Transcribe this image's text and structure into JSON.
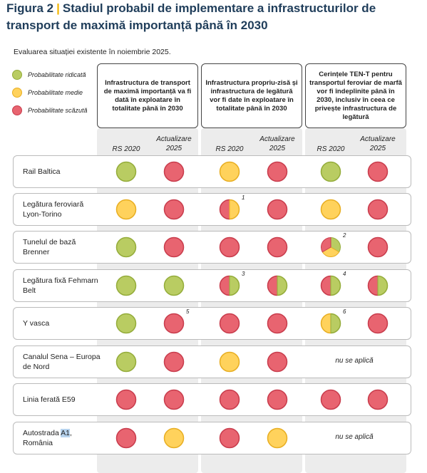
{
  "figure": {
    "label": "Figura 2",
    "separator": "|",
    "title": "Stadiul probabil de implementare a infrastructurilor de transport de maximă importanță până în 2030"
  },
  "subtitle": "Evaluarea situației existente în noiembrie 2025.",
  "legend": [
    {
      "label": "Probabilitate ridicată",
      "color": "#b9cc62"
    },
    {
      "label": "Probabilitate medie",
      "color": "#ffd25c"
    },
    {
      "label": "Probabilitate scăzută",
      "color": "#e86470"
    }
  ],
  "colors": {
    "high": "#b9cc62",
    "medium": "#ffd25c",
    "low": "#e86470",
    "high_border": "#94ac3a",
    "medium_border": "#e8ae22",
    "low_border": "#c83c4c"
  },
  "columns": [
    {
      "header": "Infrastructura de transport de maximă importanță va fi dată în exploatare în totalitate până în 2030",
      "sub": [
        "RS 2020",
        "Actualizare 2025"
      ]
    },
    {
      "header": "Infrastructura propriu-zisă și infrastructura de legătură vor fi date în exploatare în totalitate până în 2030",
      "sub": [
        "RS 2020",
        "Actualizare 2025"
      ]
    },
    {
      "header": "Cerințele TEN-T pentru transportul feroviar de marfă vor fi îndeplinite până în 2030, inclusiv în ceea ce privește infrastructura de legătură",
      "sub": [
        "RS 2020",
        "Actualizare 2025"
      ]
    }
  ],
  "na_label": "nu se aplică",
  "rows": [
    {
      "label": "Rail Baltica",
      "cells": [
        [
          "high"
        ],
        [
          "low"
        ],
        [
          "medium"
        ],
        [
          "low"
        ],
        [
          "high"
        ],
        [
          "low"
        ]
      ],
      "notes": [
        "",
        "",
        "",
        "",
        "",
        ""
      ]
    },
    {
      "label": "Legătura feroviară Lyon-Torino",
      "cells": [
        [
          "medium"
        ],
        [
          "low"
        ],
        [
          "low",
          "medium"
        ],
        [
          "low"
        ],
        [
          "medium"
        ],
        [
          "low"
        ]
      ],
      "notes": [
        "",
        "",
        "1",
        "",
        "",
        ""
      ]
    },
    {
      "label": "Tunelul de bază Brenner",
      "cells": [
        [
          "high"
        ],
        [
          "low"
        ],
        [
          "low"
        ],
        [
          "low"
        ],
        [
          "high",
          "medium",
          "low"
        ],
        [
          "low"
        ]
      ],
      "notes": [
        "",
        "",
        "",
        "",
        "2",
        ""
      ]
    },
    {
      "label": "Legătura fixă Fehmarn Belt",
      "cells": [
        [
          "high"
        ],
        [
          "high"
        ],
        [
          "low",
          "high"
        ],
        [
          "low",
          "high"
        ],
        [
          "low",
          "high"
        ],
        [
          "low",
          "high"
        ]
      ],
      "notes": [
        "",
        "",
        "3",
        "",
        "4",
        ""
      ]
    },
    {
      "label": "Y vasca",
      "cells": [
        [
          "high"
        ],
        [
          "low"
        ],
        [
          "low"
        ],
        [
          "low"
        ],
        [
          "medium",
          "high"
        ],
        [
          "low"
        ]
      ],
      "notes": [
        "",
        "5",
        "",
        "",
        "6",
        ""
      ]
    },
    {
      "label": "Canalul Sena – Europa de Nord",
      "cells": [
        [
          "high"
        ],
        [
          "low"
        ],
        [
          "medium"
        ],
        [
          "low"
        ],
        null,
        null
      ],
      "notes": [
        "",
        "",
        "",
        "",
        "",
        ""
      ]
    },
    {
      "label": "Linia ferată E59",
      "cells": [
        [
          "low"
        ],
        [
          "low"
        ],
        [
          "low"
        ],
        [
          "low"
        ],
        [
          "low"
        ],
        [
          "low"
        ]
      ],
      "notes": [
        "",
        "",
        "",
        "",
        "",
        ""
      ]
    },
    {
      "label_parts": [
        "Autostrada ",
        "A1",
        ",",
        "România"
      ],
      "cells": [
        [
          "low"
        ],
        [
          "medium"
        ],
        [
          "low"
        ],
        [
          "medium"
        ],
        null,
        null
      ],
      "notes": [
        "",
        "",
        "",
        "",
        "",
        ""
      ]
    }
  ]
}
